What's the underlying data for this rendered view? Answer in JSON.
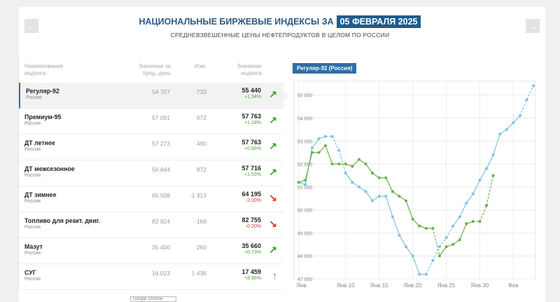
{
  "header": {
    "title": "НАЦИОНАЛЬНЫЕ БИРЖЕВЫЕ ИНДЕКСЫ ЗА",
    "date": "05 ФЕВРАЛЯ 2025",
    "subtitle": "СРЕДНЕВЗВЕШЕННЫЕ ЦЕНЫ НЕФТЕПРОДУКТОВ В ЦЕЛОМ ПО РОССИИ",
    "prev_arrow": "←",
    "next_arrow": "→"
  },
  "table": {
    "col_name": [
      "Наименование",
      "индекса"
    ],
    "col_prev": [
      "Значение за",
      "пред. день"
    ],
    "col_change": "Изм.",
    "col_value": [
      "Значение",
      "индекса"
    ],
    "rows": [
      {
        "name": "Регуляр-92",
        "region": "Россия",
        "prev": "54 707",
        "change": "733",
        "value": "55 440",
        "pct": "+1.34%",
        "dir": "up",
        "arrow": "↗"
      },
      {
        "name": "Премиум-95",
        "region": "Россия",
        "prev": "57 091",
        "change": "672",
        "value": "57 763",
        "pct": "+1.18%",
        "dir": "up",
        "arrow": "↗"
      },
      {
        "name": "ДТ летнее",
        "region": "Россия",
        "prev": "57 273",
        "change": "490",
        "value": "57 763",
        "pct": "+0.86%",
        "dir": "up",
        "arrow": "↗"
      },
      {
        "name": "ДТ межсезонное",
        "region": "Россия",
        "prev": "56 844",
        "change": "872",
        "value": "57 716",
        "pct": "+1.53%",
        "dir": "up",
        "arrow": "↗"
      },
      {
        "name": "ДТ зимнее",
        "region": "Россия",
        "prev": "65 508",
        "change": "-1 313",
        "value": "64 195",
        "pct": "-2.00%",
        "dir": "down",
        "arrow": "↘"
      },
      {
        "name": "Топливо для реакт. двиг.",
        "region": "Россия",
        "prev": "82 924",
        "change": "-169",
        "value": "82 755",
        "pct": "-0.20%",
        "dir": "down",
        "arrow": "↘"
      },
      {
        "name": "Мазут",
        "region": "Россия",
        "prev": "35 400",
        "change": "260",
        "value": "35 660",
        "pct": "+0.73%",
        "dir": "up",
        "arrow": "↗"
      },
      {
        "name": "СУГ",
        "region": "Россия",
        "prev": "16 023",
        "change": "1 436",
        "value": "17 459",
        "pct": "+8.96%",
        "dir": "up",
        "arrow": "↑"
      }
    ]
  },
  "chart_tab": "Регуляр-92 (Россия)",
  "tooltip": "Google Chrome",
  "colors": {
    "accent": "#1f5c8d",
    "up": "#3f9e2d",
    "down": "#d93a2b",
    "series_current": "#7cc3e0",
    "series_prev": "#6ab04c"
  },
  "chart_data": {
    "type": "line",
    "ylim": [
      47000,
      55600
    ],
    "yticks": [
      "47 000",
      "48 000",
      "49 000",
      "50 000",
      "51 000",
      "52 000",
      "53 000",
      "54 000",
      "55 000"
    ],
    "xticks": [
      "Янв",
      "Янв 10",
      "Янв 15",
      "Янв 20",
      "Янв 25",
      "Янв 30",
      "Фев"
    ],
    "grid": true,
    "series": [
      {
        "points": [
          {
            "x": 1,
            "y": 51200
          },
          {
            "x": 2,
            "y": 51100
          },
          {
            "x": 3,
            "y": 52700
          },
          {
            "x": 4,
            "y": 53100
          },
          {
            "x": 5,
            "y": 53200
          },
          {
            "x": 6,
            "y": 53200
          },
          {
            "x": 7,
            "y": 52600
          },
          {
            "x": 8,
            "y": 51600
          },
          {
            "x": 9,
            "y": 51200
          },
          {
            "x": 10,
            "y": 51000
          },
          {
            "x": 11,
            "y": 50800
          },
          {
            "x": 12,
            "y": 50400
          },
          {
            "x": 13,
            "y": 50600
          },
          {
            "x": 14,
            "y": 50600
          },
          {
            "x": 15,
            "y": 49700
          },
          {
            "x": 16,
            "y": 48900
          },
          {
            "x": 17,
            "y": 48400
          },
          {
            "x": 18,
            "y": 48000
          },
          {
            "x": 19,
            "y": 47200
          },
          {
            "x": 20,
            "y": 47200
          },
          {
            "x": 21,
            "y": 47800
          },
          {
            "x": 22,
            "y": 48400
          },
          {
            "x": 23,
            "y": 48800
          },
          {
            "x": 24,
            "y": 49300
          },
          {
            "x": 25,
            "y": 49700
          },
          {
            "x": 26,
            "y": 50300
          },
          {
            "x": 27,
            "y": 50700
          },
          {
            "x": 28,
            "y": 51300
          },
          {
            "x": 29,
            "y": 51800
          },
          {
            "x": 30,
            "y": 52400
          },
          {
            "x": 31,
            "y": 53300
          },
          {
            "x": 32,
            "y": 53500
          },
          {
            "x": 33,
            "y": 53800
          },
          {
            "x": 34,
            "y": 54100
          },
          {
            "x": 35,
            "y": 54800
          },
          {
            "x": 36,
            "y": 55400
          }
        ]
      },
      {
        "points": [
          {
            "x": 1,
            "y": 51200
          },
          {
            "x": 2,
            "y": 51300
          },
          {
            "x": 3,
            "y": 52500
          },
          {
            "x": 4,
            "y": 52500
          },
          {
            "x": 5,
            "y": 52800
          },
          {
            "x": 6,
            "y": 52000
          },
          {
            "x": 7,
            "y": 52000
          },
          {
            "x": 8,
            "y": 52000
          },
          {
            "x": 9,
            "y": 51900
          },
          {
            "x": 10,
            "y": 52200
          },
          {
            "x": 11,
            "y": 52000
          },
          {
            "x": 12,
            "y": 51600
          },
          {
            "x": 13,
            "y": 51400
          },
          {
            "x": 14,
            "y": 51400
          },
          {
            "x": 15,
            "y": 50800
          },
          {
            "x": 16,
            "y": 50600
          },
          {
            "x": 17,
            "y": 50400
          },
          {
            "x": 18,
            "y": 49600
          },
          {
            "x": 19,
            "y": 49300
          },
          {
            "x": 20,
            "y": 49200
          },
          {
            "x": 21,
            "y": 49200
          },
          {
            "x": 22,
            "y": 48000
          },
          {
            "x": 23,
            "y": 48400
          },
          {
            "x": 24,
            "y": 48500
          },
          {
            "x": 25,
            "y": 48700
          },
          {
            "x": 26,
            "y": 49400
          },
          {
            "x": 27,
            "y": 49500
          },
          {
            "x": 28,
            "y": 49500
          },
          {
            "x": 29,
            "y": 50200
          },
          {
            "x": 30,
            "y": 51500
          }
        ]
      }
    ]
  }
}
